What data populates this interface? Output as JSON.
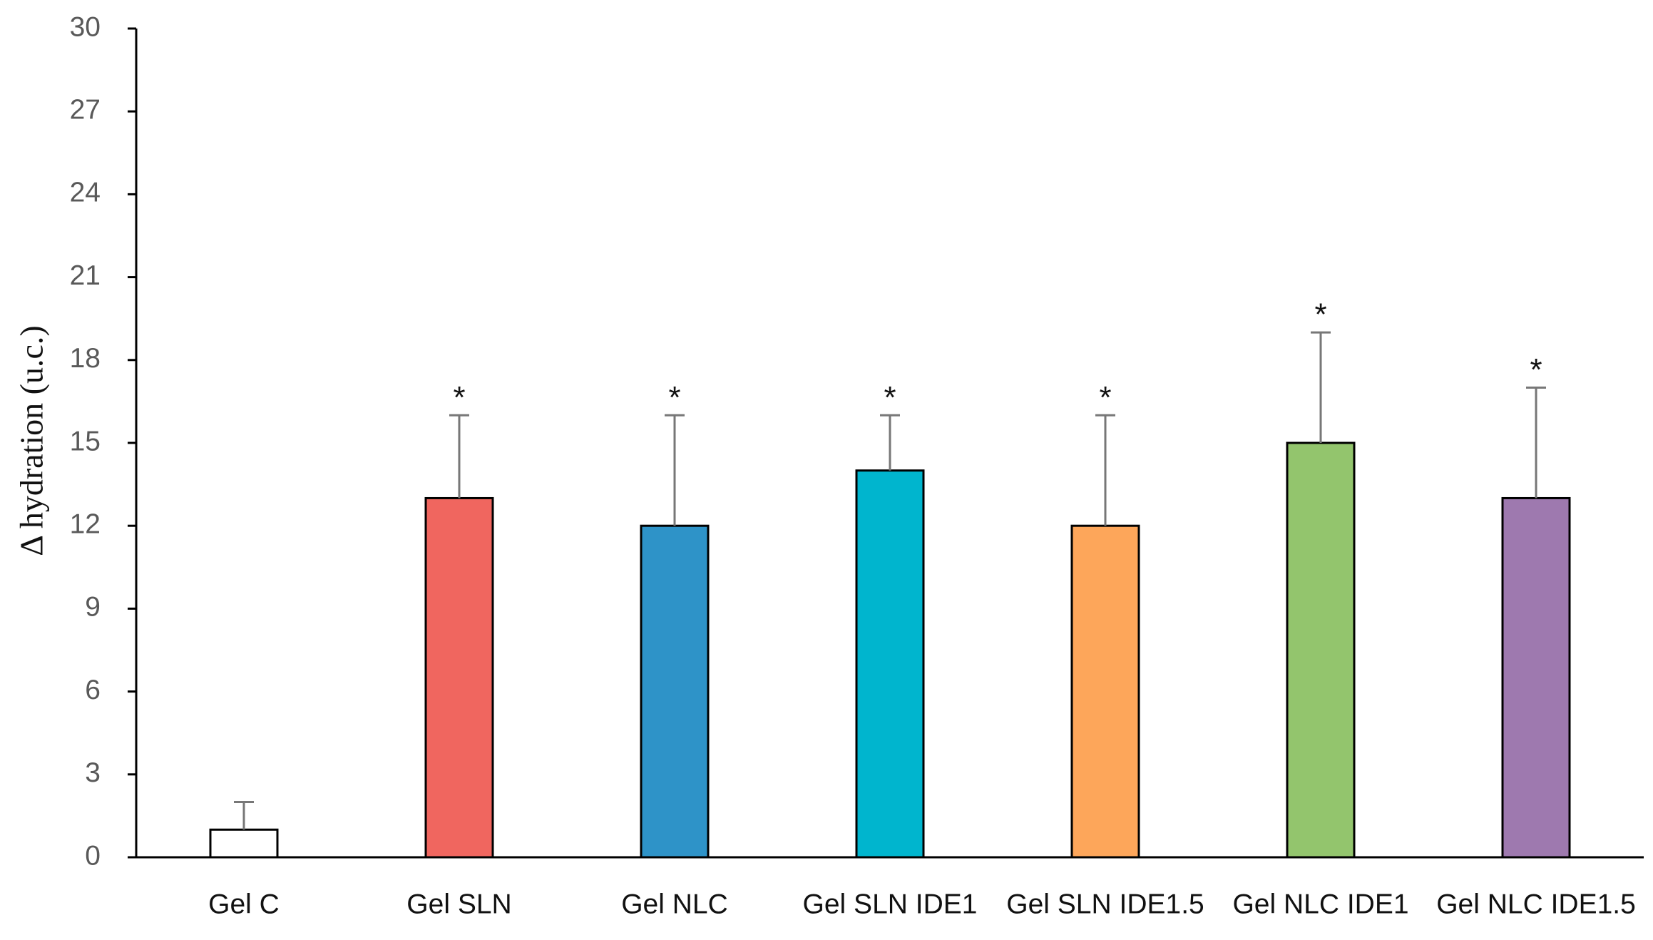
{
  "chart_data": {
    "type": "bar",
    "y_label": "Δ hydration (u.c.)",
    "categories": [
      "Gel C",
      "Gel SLN",
      "Gel NLC",
      "Gel SLN IDE1",
      "Gel SLN IDE1.5",
      "Gel NLC IDE1",
      "Gel NLC IDE1.5"
    ],
    "values": [
      1,
      13,
      12,
      14,
      12,
      15,
      13
    ],
    "errors": [
      1,
      3,
      4,
      2,
      4,
      4,
      4
    ],
    "annotations": [
      null,
      "*",
      "*",
      "*",
      "*",
      "*",
      "*"
    ],
    "colors": [
      "#ffffff",
      "#f0665f",
      "#2e93c8",
      "#00b5ce",
      "#fda65a",
      "#93c56d",
      "#9e79af"
    ],
    "ylim": [
      0,
      30
    ],
    "yticks": [
      0,
      3,
      6,
      9,
      12,
      15,
      18,
      21,
      24,
      27,
      30
    ],
    "grid": false
  }
}
